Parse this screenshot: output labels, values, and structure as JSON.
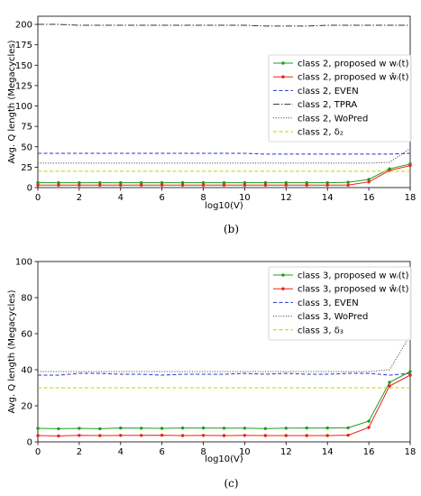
{
  "chart_data": [
    {
      "type": "line",
      "caption": "(b)",
      "xlabel": "log10(V)",
      "ylabel": "Avg. Q length (Megacycles)",
      "xlim": [
        0,
        18
      ],
      "ylim": [
        0,
        210
      ],
      "xticks": [
        0,
        2,
        4,
        6,
        8,
        10,
        12,
        14,
        16,
        18
      ],
      "yticks": [
        0,
        25,
        50,
        75,
        100,
        125,
        150,
        175,
        200
      ],
      "legend_position": "right",
      "series": [
        {
          "name": "class 2, proposed w wᵢ(t)",
          "color": "#1f9e1f",
          "style": "solid-dot",
          "x": [
            0,
            1,
            2,
            3,
            4,
            5,
            6,
            7,
            8,
            9,
            10,
            11,
            12,
            13,
            14,
            15,
            16,
            17,
            18
          ],
          "y": [
            6,
            6,
            6,
            6,
            6,
            6,
            6,
            6,
            6,
            6,
            6,
            6,
            6,
            6,
            6,
            6.5,
            10,
            23,
            29
          ]
        },
        {
          "name": "class 2, proposed w ŵᵢ(t)",
          "color": "#e8231a",
          "style": "solid-dot",
          "x": [
            0,
            1,
            2,
            3,
            4,
            5,
            6,
            7,
            8,
            9,
            10,
            11,
            12,
            13,
            14,
            15,
            16,
            17,
            18
          ],
          "y": [
            3,
            3,
            3,
            3,
            3,
            3,
            3,
            3,
            3,
            3,
            3,
            3,
            3,
            3,
            3,
            3,
            7,
            21,
            27
          ]
        },
        {
          "name": "class 2, EVEN",
          "color": "#2233cc",
          "style": "dashed",
          "x": [
            0,
            1,
            2,
            3,
            4,
            5,
            6,
            7,
            8,
            9,
            10,
            11,
            12,
            13,
            14,
            15,
            16,
            17,
            18
          ],
          "y": [
            42,
            42,
            42,
            42,
            42,
            42,
            42,
            42,
            42,
            42,
            42,
            41,
            41,
            41,
            41,
            41,
            41,
            41,
            42
          ]
        },
        {
          "name": "class 2, TPRA",
          "color": "#333333",
          "style": "dashdot",
          "x": [
            0,
            1,
            2,
            3,
            4,
            5,
            6,
            7,
            8,
            9,
            10,
            11,
            12,
            13,
            14,
            15,
            16,
            17,
            18
          ],
          "y": [
            200,
            200,
            199,
            199,
            199,
            199,
            199,
            199,
            199,
            199,
            199,
            198,
            198,
            198,
            199,
            199,
            199,
            199,
            199
          ]
        },
        {
          "name": "class 2, WoPred",
          "color": "#555555",
          "style": "dotted",
          "x": [
            0,
            1,
            2,
            3,
            4,
            5,
            6,
            7,
            8,
            9,
            10,
            11,
            12,
            13,
            14,
            15,
            16,
            17,
            18
          ],
          "y": [
            30,
            30,
            30,
            30,
            30,
            30,
            30,
            30,
            30,
            30,
            30,
            30,
            30,
            30,
            30,
            30,
            30,
            31,
            48
          ]
        },
        {
          "name": "class 2, δ₂",
          "color": "#cccc00",
          "style": "dashed",
          "x": [
            0,
            18
          ],
          "y": [
            20,
            20
          ]
        }
      ]
    },
    {
      "type": "line",
      "caption": "(c)",
      "xlabel": "log10(V)",
      "ylabel": "Avg. Q length (Megacycles)",
      "xlim": [
        0,
        18
      ],
      "ylim": [
        0,
        100
      ],
      "xticks": [
        0,
        2,
        4,
        6,
        8,
        10,
        12,
        14,
        16,
        18
      ],
      "yticks": [
        0,
        20,
        40,
        60,
        80,
        100
      ],
      "legend_position": "top-right",
      "series": [
        {
          "name": "class 3, proposed w wᵢ(t)",
          "color": "#1f9e1f",
          "style": "solid-dot",
          "x": [
            0,
            1,
            2,
            3,
            4,
            5,
            6,
            7,
            8,
            9,
            10,
            11,
            12,
            13,
            14,
            15,
            16,
            17,
            18
          ],
          "y": [
            7.5,
            7.3,
            7.5,
            7.3,
            7.7,
            7.6,
            7.5,
            7.7,
            7.7,
            7.6,
            7.6,
            7.4,
            7.6,
            7.7,
            7.7,
            7.8,
            11.5,
            33,
            39
          ]
        },
        {
          "name": "class 3, proposed w ŵᵢ(t)",
          "color": "#e8231a",
          "style": "solid-dot",
          "x": [
            0,
            1,
            2,
            3,
            4,
            5,
            6,
            7,
            8,
            9,
            10,
            11,
            12,
            13,
            14,
            15,
            16,
            17,
            18
          ],
          "y": [
            3.5,
            3.3,
            3.6,
            3.5,
            3.6,
            3.6,
            3.7,
            3.5,
            3.6,
            3.5,
            3.6,
            3.5,
            3.5,
            3.5,
            3.5,
            3.7,
            8,
            31,
            37
          ]
        },
        {
          "name": "class 3, EVEN",
          "color": "#2233cc",
          "style": "dashed",
          "x": [
            0,
            1,
            2,
            3,
            4,
            5,
            6,
            7,
            8,
            9,
            10,
            11,
            12,
            13,
            14,
            15,
            16,
            17,
            18
          ],
          "y": [
            37,
            37,
            38,
            38,
            37.5,
            37.5,
            37,
            37.5,
            37.5,
            37.5,
            38,
            37.5,
            38,
            37.5,
            37.5,
            38,
            38,
            37,
            38
          ]
        },
        {
          "name": "class 3, WoPred",
          "color": "#555555",
          "style": "dotted",
          "x": [
            0,
            1,
            2,
            3,
            4,
            5,
            6,
            7,
            8,
            9,
            10,
            11,
            12,
            13,
            14,
            15,
            16,
            17,
            18
          ],
          "y": [
            39,
            39,
            39,
            39,
            39,
            39,
            39,
            39,
            39,
            39,
            39,
            39,
            39,
            39,
            39,
            39,
            39,
            40,
            59
          ]
        },
        {
          "name": "class 3, δ₃",
          "color": "#cccc00",
          "style": "dashed",
          "x": [
            0,
            18
          ],
          "y": [
            30,
            30
          ]
        }
      ]
    }
  ]
}
